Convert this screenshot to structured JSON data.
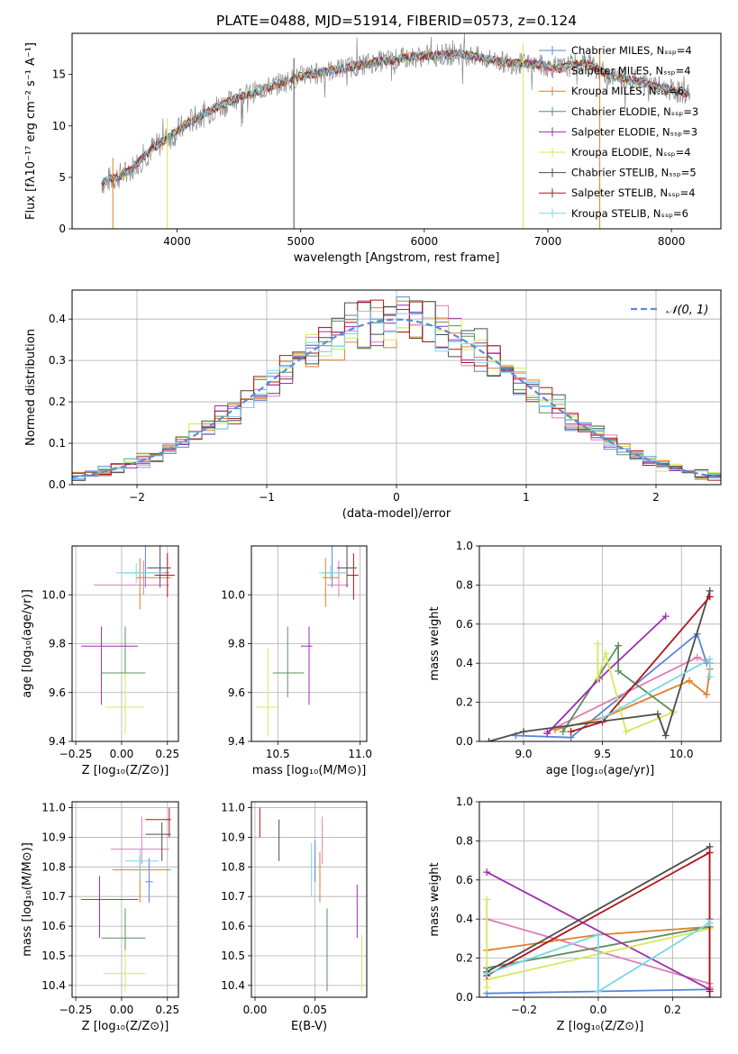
{
  "colors": {
    "chabrier_miles": "#5b84d6",
    "salpeter_miles": "#e07cb3",
    "kroupa_miles": "#e07f25",
    "chabrier_elodie": "#5c8f5c",
    "salpeter_elodie": "#9b2eb0",
    "kroupa_elodie": "#d4e85a",
    "chabrier_stelib": "#4d4d4d",
    "salpeter_stelib": "#b0151a",
    "kroupa_stelib": "#78d8e6",
    "gauss": "#5b8ad6",
    "grid": "#b0b0b0"
  },
  "chart_data": [
    {
      "type": "line",
      "id": "spectrum",
      "title": "PLATE=0488, MJD=51914, FIBERID=0573, z=0.124",
      "xlabel": "wavelength [Angstrom, rest frame]",
      "ylabel": "Flux [fλ10⁻¹⁷ erg cm⁻² s⁻¹ A⁻¹]",
      "xlim": [
        3150,
        8400
      ],
      "ylim": [
        0,
        19
      ],
      "xticks": [
        "4000",
        "5000",
        "6000",
        "7000",
        "8000"
      ],
      "yticks": [
        "0",
        "5",
        "10",
        "15"
      ],
      "legend_position": "right",
      "legend": [
        "Chabrier MILES, Nₛₛₚ=4",
        "Salpeter MILES, Nₛₛₚ=4",
        "Kroupa MILES, Nₛₛₚ=6",
        "Chabrier ELODIE, Nₛₛₚ=3",
        "Salpeter ELODIE, Nₛₛₚ=3",
        "Kroupa ELODIE, Nₛₛₚ=4",
        "Chabrier STELIB, Nₛₛₚ=5",
        "Salpeter STELIB, Nₛₛₚ=4",
        "Kroupa STELIB, Nₛₛₚ=6"
      ],
      "continuum": {
        "x": [
          3400,
          3600,
          3800,
          3950,
          4100,
          4300,
          4500,
          4800,
          5000,
          5300,
          5600,
          6000,
          6300,
          6500,
          6700,
          6900,
          7100,
          7300,
          7500,
          7700,
          7900,
          8050,
          8150
        ],
        "y": [
          4.5,
          5.5,
          7.8,
          9.0,
          10.4,
          11.7,
          12.8,
          14.0,
          14.8,
          15.5,
          16.2,
          16.8,
          17.0,
          16.5,
          16.1,
          16.0,
          15.6,
          16.2,
          14.9,
          14.4,
          13.8,
          13.3,
          13.2
        ]
      },
      "spikes": [
        {
          "x": 3480,
          "y": 0
        },
        {
          "x": 3920,
          "y": 0
        },
        {
          "x": 4945,
          "y": 0
        },
        {
          "x": 6800,
          "y": 0
        },
        {
          "x": 7420,
          "y": 0
        }
      ]
    },
    {
      "type": "area",
      "id": "residual_distribution",
      "xlabel": "(data-model)/error",
      "ylabel": "Normed distribution",
      "xlim": [
        -2.5,
        2.5
      ],
      "ylim": [
        0,
        0.47
      ],
      "xticks": [
        "−2",
        "−1",
        "0",
        "1",
        "2"
      ],
      "yticks": [
        "0.0",
        "0.1",
        "0.2",
        "0.3",
        "0.4"
      ],
      "bin_width": 0.1,
      "gaussian_label": "𝒩(0, 1)",
      "legend_position": "top-right"
    },
    {
      "type": "scatter",
      "id": "age_vs_z",
      "xlabel": "Z [log₁₀(Z/Z⊙)]",
      "ylabel": "age  [log₁₀(age/yr)]",
      "xlim": [
        -0.27,
        0.31
      ],
      "ylim": [
        9.4,
        10.2
      ],
      "xticks": [
        "−0.25",
        "0.00",
        "0.25"
      ],
      "yticks": [
        "9.4",
        "9.6",
        "9.8",
        "10.0"
      ],
      "points": [
        {
          "c": "chabrier_miles",
          "x": 0.13,
          "xe": [
            0.13,
            0.13
          ],
          "y": 10.09,
          "ye": [
            0.06,
            0.12
          ]
        },
        {
          "c": "salpeter_miles",
          "x": 0.12,
          "xe": [
            0.27,
            0.14
          ],
          "y": 10.04,
          "ye": [
            0.04,
            0.1
          ]
        },
        {
          "c": "kroupa_miles",
          "x": 0.1,
          "xe": [
            0.02,
            0.17
          ],
          "y": 10.07,
          "ye": [
            0.13,
            0.08
          ]
        },
        {
          "c": "chabrier_elodie",
          "x": 0.02,
          "xe": [
            0.13,
            0.11
          ],
          "y": 9.68,
          "ye": [
            0.09,
            0.19
          ]
        },
        {
          "c": "salpeter_elodie",
          "x": -0.11,
          "xe": [
            0.11,
            0.2
          ],
          "y": 9.79,
          "ye": [
            0.24,
            0.08
          ]
        },
        {
          "c": "kroupa_elodie",
          "x": 0.02,
          "xe": [
            0.11,
            0.1
          ],
          "y": 9.54,
          "ye": [
            0.11,
            0.14
          ]
        },
        {
          "c": "chabrier_stelib",
          "x": 0.21,
          "xe": [
            0.07,
            0.06
          ],
          "y": 10.11,
          "ye": [
            0.08,
            0.09
          ]
        },
        {
          "c": "salpeter_stelib",
          "x": 0.25,
          "xe": [
            0.07,
            0.04
          ],
          "y": 10.08,
          "ye": [
            0.09,
            0.09
          ]
        },
        {
          "c": "kroupa_stelib",
          "x": 0.08,
          "xe": [
            0.11,
            0.15
          ],
          "y": 10.09,
          "ye": [
            0.04,
            0.04
          ]
        }
      ]
    },
    {
      "type": "scatter",
      "id": "age_vs_mass",
      "xlabel": "mass [log₁₀(M/M⊙)]",
      "ylabel": "",
      "xlim": [
        10.34,
        11.04
      ],
      "ylim": [
        9.4,
        10.2
      ],
      "xticks": [
        "10.5",
        "11.0"
      ],
      "yticks": [
        "9.4",
        "9.6",
        "9.8",
        "10.0"
      ],
      "points": [
        {
          "c": "chabrier_miles",
          "x": 10.83,
          "xe": [
            0.06,
            0.08
          ],
          "y": 10.09,
          "ye": [
            0.06,
            0.11
          ]
        },
        {
          "c": "salpeter_miles",
          "x": 10.87,
          "xe": [
            0.07,
            0.06
          ],
          "y": 10.04,
          "ye": [
            0.05,
            0.1
          ]
        },
        {
          "c": "kroupa_miles",
          "x": 10.79,
          "xe": [
            0.02,
            0.08
          ],
          "y": 10.07,
          "ye": [
            0.12,
            0.08
          ]
        },
        {
          "c": "chabrier_elodie",
          "x": 10.56,
          "xe": [
            0.09,
            0.1
          ],
          "y": 9.68,
          "ye": [
            0.1,
            0.19
          ]
        },
        {
          "c": "salpeter_elodie",
          "x": 10.69,
          "xe": [
            0.05,
            0.02
          ],
          "y": 9.79,
          "ye": [
            0.24,
            0.08
          ]
        },
        {
          "c": "kroupa_elodie",
          "x": 10.44,
          "xe": [
            0.07,
            0.07
          ],
          "y": 9.54,
          "ye": [
            0.12,
            0.24
          ]
        },
        {
          "c": "chabrier_stelib",
          "x": 10.92,
          "xe": [
            0.06,
            0.06
          ],
          "y": 10.11,
          "ye": [
            0.08,
            0.09
          ]
        },
        {
          "c": "salpeter_stelib",
          "x": 10.96,
          "xe": [
            0.04,
            0.03
          ],
          "y": 10.08,
          "ye": [
            0.1,
            0.09
          ]
        },
        {
          "c": "kroupa_stelib",
          "x": 10.82,
          "xe": [
            0.07,
            0.08
          ],
          "y": 10.09,
          "ye": [
            0.03,
            0.03
          ]
        }
      ]
    },
    {
      "type": "line",
      "id": "mass_weight_vs_age",
      "xlabel": "age  [log₁₀(age/yr)]",
      "ylabel": "mass weight",
      "xlim": [
        8.72,
        10.25
      ],
      "ylim": [
        0,
        1
      ],
      "xticks": [
        "9.0",
        "9.5",
        "10.0"
      ],
      "yticks": [
        "0.0",
        "0.2",
        "0.4",
        "0.6",
        "0.8",
        "1.0"
      ],
      "series": [
        {
          "c": "chabrier_miles",
          "x": [
            8.95,
            9.3,
            10.1,
            10.16
          ],
          "y": [
            0.03,
            0.02,
            0.55,
            0.4
          ]
        },
        {
          "c": "salpeter_miles",
          "x": [
            9.15,
            10.1,
            10.18
          ],
          "y": [
            0.05,
            0.43,
            0.4
          ]
        },
        {
          "c": "kroupa_miles",
          "x": [
            9.2,
            9.5,
            10.05,
            10.16,
            10.18
          ],
          "y": [
            0.06,
            0.12,
            0.31,
            0.24,
            0.37
          ]
        },
        {
          "c": "chabrier_elodie",
          "x": [
            9.25,
            9.6,
            9.6,
            9.95
          ],
          "y": [
            0.05,
            0.49,
            0.36,
            0.15
          ]
        },
        {
          "c": "salpeter_elodie",
          "x": [
            9.15,
            9.48,
            9.9
          ],
          "y": [
            0.04,
            0.32,
            0.64
          ]
        },
        {
          "c": "kroupa_elodie",
          "x": [
            9.47,
            9.47,
            9.52,
            9.65,
            9.95
          ],
          "y": [
            0.5,
            0.32,
            0.45,
            0.05,
            0.15
          ]
        },
        {
          "c": "chabrier_stelib",
          "x": [
            8.78,
            9.0,
            9.85,
            9.9,
            10.18
          ],
          "y": [
            0.0,
            0.05,
            0.14,
            0.03,
            0.77
          ]
        },
        {
          "c": "salpeter_stelib",
          "x": [
            9.3,
            9.5,
            10.18
          ],
          "y": [
            0.05,
            0.1,
            0.74
          ]
        },
        {
          "c": "kroupa_stelib",
          "x": [
            9.5,
            10.18,
            10.18
          ],
          "y": [
            0.12,
            0.42,
            0.33
          ]
        }
      ]
    },
    {
      "type": "scatter",
      "id": "mass_vs_z",
      "xlabel": "Z [log₁₀(Z/Z⊙)]",
      "ylabel": "mass [log₁₀(M/M⊙)]",
      "xlim": [
        -0.27,
        0.31
      ],
      "ylim": [
        10.36,
        11.02
      ],
      "xticks": [
        "−0.25",
        "0.00",
        "0.25"
      ],
      "yticks": [
        "10.4",
        "10.5",
        "10.6",
        "10.7",
        "10.8",
        "10.9",
        "11.0"
      ],
      "points": [
        {
          "c": "chabrier_miles",
          "x": 0.15,
          "xe": [
            0.02,
            0.02
          ],
          "y": 10.75,
          "ye": [
            0.07,
            0.08
          ]
        },
        {
          "c": "salpeter_miles",
          "x": 0.11,
          "xe": [
            0.17,
            0.15
          ],
          "y": 10.86,
          "ye": [
            0.05,
            0.11
          ]
        },
        {
          "c": "kroupa_miles",
          "x": 0.1,
          "xe": [
            0.15,
            0.17
          ],
          "y": 10.79,
          "ye": [
            0.11,
            0.05
          ]
        },
        {
          "c": "chabrier_elodie",
          "x": 0.02,
          "xe": [
            0.13,
            0.11
          ],
          "y": 10.56,
          "ye": [
            0.18,
            0.1
          ]
        },
        {
          "c": "salpeter_elodie",
          "x": -0.12,
          "xe": [
            0.1,
            0.21
          ],
          "y": 10.69,
          "ye": [
            0.13,
            0.08
          ]
        },
        {
          "c": "kroupa_elodie",
          "x": 0.02,
          "xe": [
            0.12,
            0.11
          ],
          "y": 10.44,
          "ye": [
            0.06,
            0.08
          ]
        },
        {
          "c": "chabrier_stelib",
          "x": 0.22,
          "xe": [
            0.09,
            0.05
          ],
          "y": 10.91,
          "ye": [
            0.09,
            0.04
          ]
        },
        {
          "c": "salpeter_stelib",
          "x": 0.26,
          "xe": [
            0.13,
            0.01
          ],
          "y": 10.96,
          "ye": [
            0.06,
            0.04
          ]
        },
        {
          "c": "kroupa_stelib",
          "x": 0.1,
          "xe": [
            0.08,
            0.1
          ],
          "y": 10.82,
          "ye": [
            0.06,
            0.04
          ]
        }
      ]
    },
    {
      "type": "scatter",
      "id": "mass_vs_ebv",
      "xlabel": "E(B-V)",
      "ylabel": "",
      "xlim": [
        -0.003,
        0.093
      ],
      "ylim": [
        10.36,
        11.02
      ],
      "xticks": [
        "0.00",
        "0.05"
      ],
      "yticks": [
        "10.4",
        "10.5",
        "10.6",
        "10.7",
        "10.8",
        "10.9",
        "11.0"
      ],
      "points": [
        {
          "c": "chabrier_miles",
          "x": 0.05,
          "xe": [
            0,
            0
          ],
          "y": 10.8,
          "ye": [
            0.05,
            0.09
          ]
        },
        {
          "c": "salpeter_miles",
          "x": 0.056,
          "xe": [
            0,
            0
          ],
          "y": 10.86,
          "ye": [
            0.05,
            0.11
          ]
        },
        {
          "c": "kroupa_miles",
          "x": 0.054,
          "xe": [
            0,
            0
          ],
          "y": 10.79,
          "ye": [
            0.11,
            0.06
          ]
        },
        {
          "c": "chabrier_elodie",
          "x": 0.06,
          "xe": [
            0,
            0
          ],
          "y": 10.55,
          "ye": [
            0.17,
            0.11
          ]
        },
        {
          "c": "salpeter_elodie",
          "x": 0.085,
          "xe": [
            0,
            0
          ],
          "y": 10.65,
          "ye": [
            0.09,
            0.09
          ]
        },
        {
          "c": "kroupa_elodie",
          "x": 0.089,
          "xe": [
            0,
            0
          ],
          "y": 10.45,
          "ye": [
            0.07,
            0.12
          ]
        },
        {
          "c": "chabrier_stelib",
          "x": 0.02,
          "xe": [
            0,
            0
          ],
          "y": 10.91,
          "ye": [
            0.09,
            0.05
          ]
        },
        {
          "c": "salpeter_stelib",
          "x": 0.004,
          "xe": [
            0,
            0
          ],
          "y": 10.96,
          "ye": [
            0.06,
            0.04
          ]
        },
        {
          "c": "kroupa_stelib",
          "x": 0.047,
          "xe": [
            0,
            0
          ],
          "y": 10.78,
          "ye": [
            0.08,
            0.1
          ]
        }
      ]
    },
    {
      "type": "line",
      "id": "mass_weight_vs_z",
      "xlabel": "Z [log₁₀(Z/Z⊙)]",
      "ylabel": "mass weight",
      "xlim": [
        -0.32,
        0.33
      ],
      "ylim": [
        0,
        1
      ],
      "xticks": [
        "−0.2",
        "0.0",
        "0.2"
      ],
      "yticks": [
        "0.0",
        "0.2",
        "0.4",
        "0.6",
        "0.8",
        "1.0"
      ],
      "series": [
        {
          "c": "chabrier_miles",
          "x": [
            -0.3,
            0.3,
            0.3
          ],
          "y": [
            0.02,
            0.04,
            0.4
          ]
        },
        {
          "c": "salpeter_miles",
          "x": [
            -0.3,
            0.3,
            0.3
          ],
          "y": [
            0.4,
            0.07,
            0.05
          ]
        },
        {
          "c": "kroupa_miles",
          "x": [
            -0.3,
            0.0,
            0.3
          ],
          "y": [
            0.24,
            0.32,
            0.36
          ]
        },
        {
          "c": "chabrier_elodie",
          "x": [
            -0.3,
            0.3
          ],
          "y": [
            0.15,
            0.36
          ]
        },
        {
          "c": "salpeter_elodie",
          "x": [
            -0.3,
            0.3
          ],
          "y": [
            0.64,
            0.04
          ]
        },
        {
          "c": "kroupa_elodie",
          "x": [
            -0.3,
            -0.3,
            -0.3,
            0.3
          ],
          "y": [
            0.5,
            0.05,
            0.09,
            0.35
          ]
        },
        {
          "c": "chabrier_stelib",
          "x": [
            -0.3,
            0.3,
            0.3
          ],
          "y": [
            0.13,
            0.77,
            0.0
          ]
        },
        {
          "c": "salpeter_stelib",
          "x": [
            -0.3,
            0.3,
            0.3
          ],
          "y": [
            0.11,
            0.74,
            0.03
          ]
        },
        {
          "c": "kroupa_stelib",
          "x": [
            -0.3,
            0.0,
            0.0,
            0.3
          ],
          "y": [
            0.12,
            0.32,
            0.03,
            0.38
          ]
        }
      ]
    }
  ]
}
